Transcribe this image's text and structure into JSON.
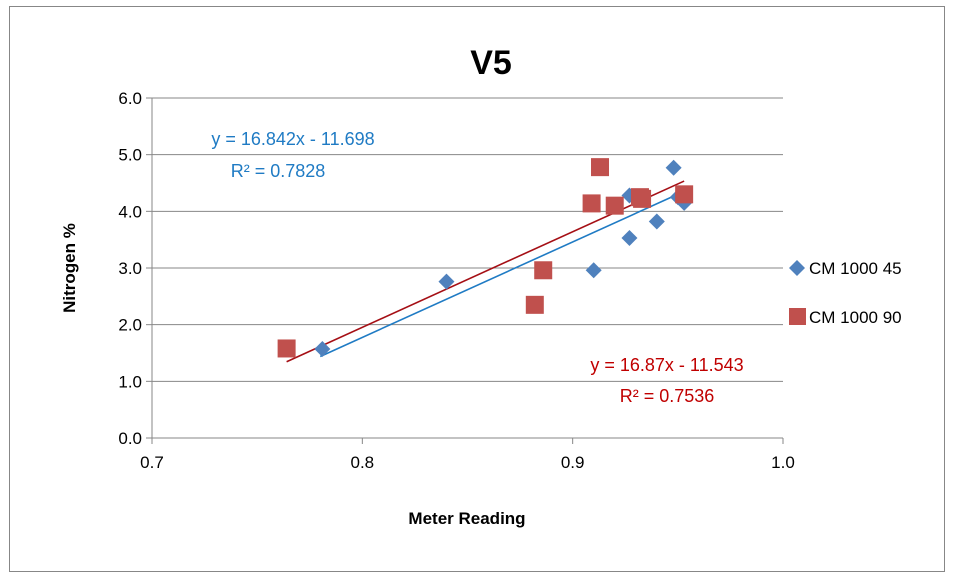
{
  "chart_data": {
    "type": "scatter",
    "title": "V5",
    "xlabel": "Meter Reading",
    "ylabel": "Nitrogen %",
    "xlim": [
      0.7,
      1.0
    ],
    "ylim": [
      0.0,
      6.0
    ],
    "x_ticks": [
      "0.7",
      "0.8",
      "0.9",
      "1.0"
    ],
    "y_ticks": [
      "0.0",
      "1.0",
      "2.0",
      "3.0",
      "4.0",
      "5.0",
      "6.0"
    ],
    "grid": "horizontal",
    "legend_position": "right",
    "series": [
      {
        "name": "CM 1000 45",
        "marker": "diamond",
        "color": "#4F81BD",
        "trend_color": "#1F7BC4",
        "points": [
          [
            0.781,
            1.57
          ],
          [
            0.84,
            2.76
          ],
          [
            0.91,
            2.96
          ],
          [
            0.927,
            3.53
          ],
          [
            0.927,
            4.28
          ],
          [
            0.94,
            3.82
          ],
          [
            0.948,
            4.77
          ],
          [
            0.95,
            4.25
          ],
          [
            0.953,
            4.15
          ]
        ],
        "trend": {
          "slope": 16.842,
          "intercept": -11.698,
          "x_range": [
            0.78,
            0.953
          ]
        },
        "equation": "y = 16.842x - 11.698",
        "r2": "R² = 0.7828"
      },
      {
        "name": "CM 1000 90",
        "marker": "square",
        "color": "#C0504D",
        "trend_color": "#A50F15",
        "points": [
          [
            0.764,
            1.58
          ],
          [
            0.882,
            2.35
          ],
          [
            0.886,
            2.96
          ],
          [
            0.909,
            4.14
          ],
          [
            0.913,
            4.78
          ],
          [
            0.92,
            4.1
          ],
          [
            0.932,
            4.25
          ],
          [
            0.933,
            4.22
          ],
          [
            0.953,
            4.3
          ]
        ],
        "trend": {
          "slope": 16.87,
          "intercept": -11.543,
          "x_range": [
            0.764,
            0.953
          ]
        },
        "equation": "y = 16.87x - 11.543",
        "r2": "R² = 0.7536"
      }
    ]
  }
}
